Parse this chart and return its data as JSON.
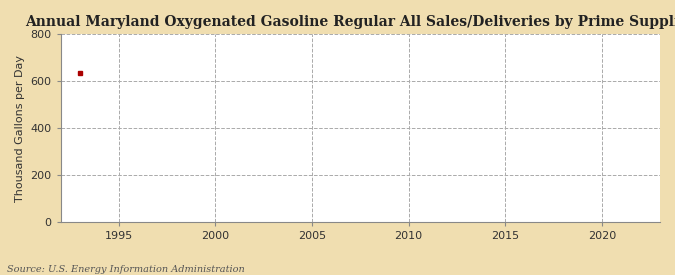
{
  "title": "Annual Maryland Oxygenated Gasoline Regular All Sales/Deliveries by Prime Supplier",
  "ylabel": "Thousand Gallons per Day",
  "source": "Source: U.S. Energy Information Administration",
  "fig_background_color": "#f0deb0",
  "plot_background_color": "#ffffff",
  "data_x": [
    1993
  ],
  "data_y": [
    634
  ],
  "data_color": "#aa0000",
  "data_marker": "s",
  "data_markersize": 3,
  "xlim": [
    1992,
    2023
  ],
  "ylim": [
    0,
    800
  ],
  "yticks": [
    0,
    200,
    400,
    600,
    800
  ],
  "xticks": [
    1995,
    2000,
    2005,
    2010,
    2015,
    2020
  ],
  "grid_color": "#aaaaaa",
  "grid_linestyle": "--",
  "grid_linewidth": 0.7,
  "title_fontsize": 10,
  "ylabel_fontsize": 8,
  "tick_fontsize": 8,
  "source_fontsize": 7,
  "spine_color": "#888888"
}
